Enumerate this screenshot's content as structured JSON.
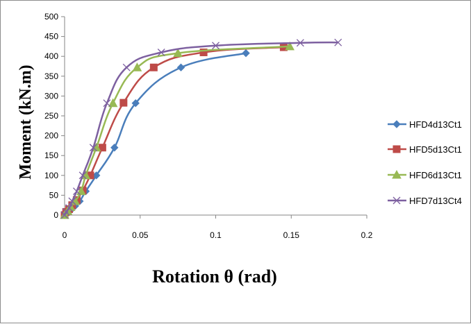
{
  "chart_data": {
    "type": "line",
    "title": "",
    "xlabel": "Rotation θ (rad)",
    "ylabel": "Moment (kN.m)",
    "xlim": [
      0,
      0.2
    ],
    "ylim": [
      0,
      500
    ],
    "x_ticks": [
      0,
      0.05,
      0.1,
      0.15,
      0.2
    ],
    "x_tick_labels": [
      "0",
      "0.05",
      "0.1",
      "0.15",
      "0.2"
    ],
    "y_ticks": [
      0,
      50,
      100,
      150,
      200,
      250,
      300,
      350,
      400,
      450,
      500
    ],
    "y_tick_labels": [
      "0",
      "50",
      "100",
      "150",
      "200",
      "250",
      "300",
      "350",
      "400",
      "450",
      "500"
    ],
    "grid": false,
    "legend_position": "right",
    "series": [
      {
        "name": "HFD4d13Ct1",
        "color": "#4A7EBB",
        "marker": "diamond",
        "x": [
          0,
          0.002,
          0.004,
          0.007,
          0.01,
          0.014,
          0.021,
          0.033,
          0.047,
          0.077,
          0.12
        ],
        "y": [
          0,
          5,
          12,
          23,
          35,
          60,
          100,
          170,
          282,
          372,
          408
        ]
      },
      {
        "name": "HFD5d13Ct1",
        "color": "#BE4B48",
        "marker": "square",
        "x": [
          0,
          0.001,
          0.003,
          0.005,
          0.008,
          0.012,
          0.017,
          0.025,
          0.039,
          0.059,
          0.092,
          0.145
        ],
        "y": [
          0,
          8,
          15,
          25,
          38,
          62,
          100,
          170,
          283,
          372,
          410,
          423
        ]
      },
      {
        "name": "HFD6d13Ct1",
        "color": "#98B954",
        "marker": "triangle",
        "x": [
          0,
          0.002,
          0.004,
          0.007,
          0.011,
          0.014,
          0.021,
          0.032,
          0.048,
          0.075,
          0.149
        ],
        "y": [
          0,
          10,
          20,
          35,
          60,
          100,
          170,
          282,
          372,
          408,
          425
        ]
      },
      {
        "name": "HFD7d13Ct4",
        "color": "#7D60A0",
        "marker": "x",
        "x": [
          0,
          0.001,
          0.003,
          0.005,
          0.008,
          0.012,
          0.019,
          0.028,
          0.041,
          0.064,
          0.1,
          0.156,
          0.181
        ],
        "y": [
          0,
          8,
          18,
          35,
          60,
          100,
          170,
          282,
          372,
          410,
          427,
          434,
          435
        ]
      }
    ]
  }
}
